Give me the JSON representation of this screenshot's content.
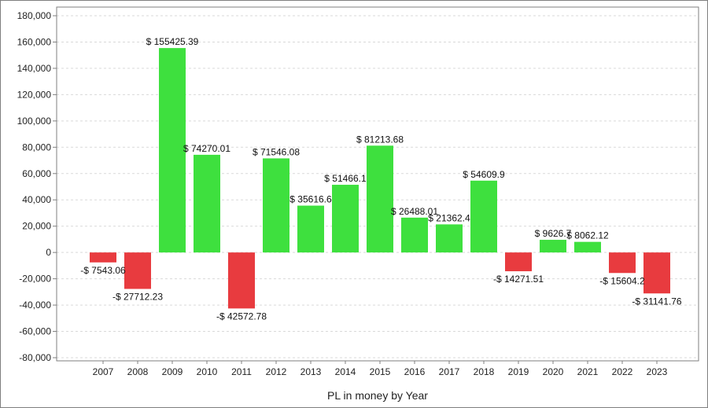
{
  "chart_data": {
    "type": "bar",
    "title": "",
    "xlabel": "PL in money by Year",
    "ylabel": "",
    "ylim": [
      -80000,
      180000
    ],
    "ytick_step": 20000,
    "y_tick_labels": [
      "-80,000",
      "-60,000",
      "-40,000",
      "-20,000",
      "0",
      "20,000",
      "40,000",
      "60,000",
      "80,000",
      "100,000",
      "120,000",
      "140,000",
      "160,000",
      "180,000"
    ],
    "grid": true,
    "legend": "none",
    "categories": [
      "2007",
      "2008",
      "2009",
      "2010",
      "2011",
      "2012",
      "2013",
      "2014",
      "2015",
      "2016",
      "2017",
      "2018",
      "2019",
      "2020",
      "2021",
      "2022",
      "2023"
    ],
    "values": [
      -7543.06,
      -27712.23,
      155425.39,
      74270.01,
      -42572.78,
      71546.08,
      35616.6,
      51466.1,
      81213.68,
      26488.01,
      21362.4,
      54609.9,
      -14271.51,
      9626.7,
      8062.12,
      -15604.2,
      -31141.76
    ],
    "data_labels": [
      "-$ 7543.06",
      "-$ 27712.23",
      "$ 155425.39",
      "$ 74270.01",
      "-$ 42572.78",
      "$ 71546.08",
      "$ 35616.6",
      "$ 51466.1",
      "$ 81213.68",
      "$ 26488.01",
      "$ 21362.4",
      "$ 54609.9",
      "-$ 14271.51",
      "$ 9626.7",
      "$ 8062.12",
      "-$ 15604.2",
      "-$ 31141.76"
    ],
    "colors": {
      "positive": "#3ee03e",
      "negative": "#e83b3f",
      "grid": "#d9d9d9",
      "axis": "#7f7f7f"
    }
  }
}
